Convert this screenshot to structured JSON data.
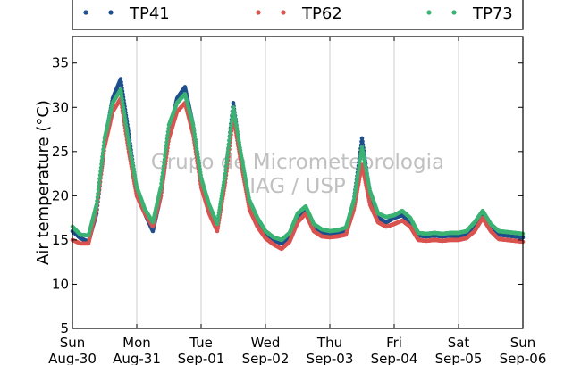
{
  "chart_data": {
    "type": "scatter",
    "ylabel": "Air temperature (°C)",
    "ylim": [
      5,
      38
    ],
    "yticks": [
      5,
      10,
      15,
      20,
      25,
      30,
      35
    ],
    "xlim": [
      "2015-08-30",
      "2015-09-06"
    ],
    "xticks": [
      {
        "day": "Sun",
        "date": "Aug-30"
      },
      {
        "day": "Mon",
        "date": "Aug-31"
      },
      {
        "day": "Tue",
        "date": "Sep-01"
      },
      {
        "day": "Wed",
        "date": "Sep-02"
      },
      {
        "day": "Thu",
        "date": "Sep-03"
      },
      {
        "day": "Fri",
        "date": "Sep-04"
      },
      {
        "day": "Sat",
        "date": "Sep-05"
      },
      {
        "day": "Sun",
        "date": "Sep-06"
      }
    ],
    "grid": "vertical",
    "legend_position": "above plot, top",
    "watermark": [
      "Grupo de Micrometeorologia",
      "IAG / USP"
    ],
    "series": [
      {
        "name": "TP41",
        "color": "#1f4e8c",
        "points": [
          [
            "2015-08-30 00:00",
            16.0
          ],
          [
            "2015-08-30 03:00",
            15.2
          ],
          [
            "2015-08-30 06:00",
            14.8
          ],
          [
            "2015-08-30 09:00",
            18.0
          ],
          [
            "2015-08-30 12:00",
            26.0
          ],
          [
            "2015-08-30 15:00",
            31.0
          ],
          [
            "2015-08-30 18:00",
            33.2
          ],
          [
            "2015-08-30 21:00",
            27.0
          ],
          [
            "2015-08-31 00:00",
            20.5
          ],
          [
            "2015-08-31 03:00",
            18.0
          ],
          [
            "2015-08-31 06:00",
            16.0
          ],
          [
            "2015-08-31 09:00",
            20.0
          ],
          [
            "2015-08-31 12:00",
            27.0
          ],
          [
            "2015-08-31 15:00",
            31.0
          ],
          [
            "2015-08-31 18:00",
            32.3
          ],
          [
            "2015-08-31 21:00",
            28.0
          ],
          [
            "2015-09-01 00:00",
            22.0
          ],
          [
            "2015-09-01 03:00",
            18.5
          ],
          [
            "2015-09-01 06:00",
            16.2
          ],
          [
            "2015-09-01 09:00",
            22.0
          ],
          [
            "2015-09-01 12:00",
            30.5
          ],
          [
            "2015-09-01 15:00",
            24.0
          ],
          [
            "2015-09-01 18:00",
            19.0
          ],
          [
            "2015-09-01 21:00",
            17.0
          ],
          [
            "2015-09-02 00:00",
            15.6
          ],
          [
            "2015-09-02 03:00",
            15.0
          ],
          [
            "2015-09-02 06:00",
            14.6
          ],
          [
            "2015-09-02 09:00",
            15.2
          ],
          [
            "2015-09-02 12:00",
            17.5
          ],
          [
            "2015-09-02 15:00",
            18.5
          ],
          [
            "2015-09-02 18:00",
            16.5
          ],
          [
            "2015-09-02 21:00",
            15.8
          ],
          [
            "2015-09-03 00:00",
            15.6
          ],
          [
            "2015-09-03 03:00",
            15.7
          ],
          [
            "2015-09-03 06:00",
            16.0
          ],
          [
            "2015-09-03 09:00",
            19.5
          ],
          [
            "2015-09-03 12:00",
            26.5
          ],
          [
            "2015-09-03 15:00",
            20.0
          ],
          [
            "2015-09-03 18:00",
            17.5
          ],
          [
            "2015-09-03 21:00",
            17.0
          ],
          [
            "2015-09-04 00:00",
            17.5
          ],
          [
            "2015-09-04 03:00",
            17.8
          ],
          [
            "2015-09-04 06:00",
            17.0
          ],
          [
            "2015-09-04 09:00",
            15.5
          ],
          [
            "2015-09-04 12:00",
            15.4
          ],
          [
            "2015-09-04 15:00",
            15.5
          ],
          [
            "2015-09-04 18:00",
            15.4
          ],
          [
            "2015-09-04 21:00",
            15.5
          ],
          [
            "2015-09-05 00:00",
            15.4
          ],
          [
            "2015-09-05 03:00",
            15.6
          ],
          [
            "2015-09-05 06:00",
            16.5
          ],
          [
            "2015-09-05 09:00",
            18.0
          ],
          [
            "2015-09-05 12:00",
            16.5
          ],
          [
            "2015-09-05 15:00",
            15.6
          ],
          [
            "2015-09-05 18:00",
            15.5
          ],
          [
            "2015-09-05 21:00",
            15.4
          ],
          [
            "2015-09-06 00:00",
            15.3
          ]
        ]
      },
      {
        "name": "TP62",
        "color": "#d9534f",
        "points": [
          [
            "2015-08-30 00:00",
            15.0
          ],
          [
            "2015-08-30 03:00",
            14.6
          ],
          [
            "2015-08-30 06:00",
            14.6
          ],
          [
            "2015-08-30 09:00",
            18.5
          ],
          [
            "2015-08-30 12:00",
            25.5
          ],
          [
            "2015-08-30 15:00",
            29.5
          ],
          [
            "2015-08-30 18:00",
            31.0
          ],
          [
            "2015-08-30 21:00",
            25.0
          ],
          [
            "2015-08-31 00:00",
            20.0
          ],
          [
            "2015-08-31 03:00",
            18.0
          ],
          [
            "2015-08-31 06:00",
            16.5
          ],
          [
            "2015-08-31 09:00",
            20.0
          ],
          [
            "2015-08-31 12:00",
            26.5
          ],
          [
            "2015-08-31 15:00",
            29.5
          ],
          [
            "2015-08-31 18:00",
            30.5
          ],
          [
            "2015-08-31 21:00",
            27.0
          ],
          [
            "2015-09-01 00:00",
            21.0
          ],
          [
            "2015-09-01 03:00",
            18.0
          ],
          [
            "2015-09-01 06:00",
            16.0
          ],
          [
            "2015-09-01 09:00",
            21.5
          ],
          [
            "2015-09-01 12:00",
            29.0
          ],
          [
            "2015-09-01 15:00",
            23.5
          ],
          [
            "2015-09-01 18:00",
            18.5
          ],
          [
            "2015-09-01 21:00",
            16.5
          ],
          [
            "2015-09-02 00:00",
            15.2
          ],
          [
            "2015-09-02 03:00",
            14.5
          ],
          [
            "2015-09-02 06:00",
            14.0
          ],
          [
            "2015-09-02 09:00",
            14.8
          ],
          [
            "2015-09-02 12:00",
            17.0
          ],
          [
            "2015-09-02 15:00",
            18.0
          ],
          [
            "2015-09-02 18:00",
            16.0
          ],
          [
            "2015-09-02 21:00",
            15.4
          ],
          [
            "2015-09-03 00:00",
            15.3
          ],
          [
            "2015-09-03 03:00",
            15.4
          ],
          [
            "2015-09-03 06:00",
            15.6
          ],
          [
            "2015-09-03 09:00",
            18.5
          ],
          [
            "2015-09-03 12:00",
            23.5
          ],
          [
            "2015-09-03 15:00",
            19.0
          ],
          [
            "2015-09-03 18:00",
            17.0
          ],
          [
            "2015-09-03 21:00",
            16.5
          ],
          [
            "2015-09-04 00:00",
            16.8
          ],
          [
            "2015-09-04 03:00",
            17.2
          ],
          [
            "2015-09-04 06:00",
            16.5
          ],
          [
            "2015-09-04 09:00",
            15.0
          ],
          [
            "2015-09-04 12:00",
            14.9
          ],
          [
            "2015-09-04 15:00",
            15.0
          ],
          [
            "2015-09-04 18:00",
            14.9
          ],
          [
            "2015-09-04 21:00",
            15.0
          ],
          [
            "2015-09-05 00:00",
            15.0
          ],
          [
            "2015-09-05 03:00",
            15.2
          ],
          [
            "2015-09-05 06:00",
            16.0
          ],
          [
            "2015-09-05 09:00",
            17.5
          ],
          [
            "2015-09-05 12:00",
            16.0
          ],
          [
            "2015-09-05 15:00",
            15.1
          ],
          [
            "2015-09-05 18:00",
            15.0
          ],
          [
            "2015-09-05 21:00",
            14.9
          ],
          [
            "2015-09-06 00:00",
            14.8
          ]
        ]
      },
      {
        "name": "TP73",
        "color": "#3bb273",
        "points": [
          [
            "2015-08-30 00:00",
            16.5
          ],
          [
            "2015-08-30 03:00",
            15.6
          ],
          [
            "2015-08-30 06:00",
            15.5
          ],
          [
            "2015-08-30 09:00",
            19.0
          ],
          [
            "2015-08-30 12:00",
            26.5
          ],
          [
            "2015-08-30 15:00",
            30.5
          ],
          [
            "2015-08-30 18:00",
            32.0
          ],
          [
            "2015-08-30 21:00",
            26.0
          ],
          [
            "2015-08-31 00:00",
            21.0
          ],
          [
            "2015-08-31 03:00",
            18.5
          ],
          [
            "2015-08-31 06:00",
            17.0
          ],
          [
            "2015-08-31 09:00",
            21.0
          ],
          [
            "2015-08-31 12:00",
            28.0
          ],
          [
            "2015-08-31 15:00",
            30.5
          ],
          [
            "2015-08-31 18:00",
            31.5
          ],
          [
            "2015-08-31 21:00",
            28.0
          ],
          [
            "2015-09-01 00:00",
            22.0
          ],
          [
            "2015-09-01 03:00",
            19.0
          ],
          [
            "2015-09-01 06:00",
            16.8
          ],
          [
            "2015-09-01 09:00",
            22.5
          ],
          [
            "2015-09-01 12:00",
            30.0
          ],
          [
            "2015-09-01 15:00",
            24.5
          ],
          [
            "2015-09-01 18:00",
            19.5
          ],
          [
            "2015-09-01 21:00",
            17.5
          ],
          [
            "2015-09-02 00:00",
            16.0
          ],
          [
            "2015-09-02 03:00",
            15.3
          ],
          [
            "2015-09-02 06:00",
            15.0
          ],
          [
            "2015-09-02 09:00",
            15.8
          ],
          [
            "2015-09-02 12:00",
            18.0
          ],
          [
            "2015-09-02 15:00",
            18.8
          ],
          [
            "2015-09-02 18:00",
            16.8
          ],
          [
            "2015-09-02 21:00",
            16.2
          ],
          [
            "2015-09-03 00:00",
            16.0
          ],
          [
            "2015-09-03 03:00",
            16.1
          ],
          [
            "2015-09-03 06:00",
            16.4
          ],
          [
            "2015-09-03 09:00",
            19.5
          ],
          [
            "2015-09-03 12:00",
            25.5
          ],
          [
            "2015-09-03 15:00",
            20.5
          ],
          [
            "2015-09-03 18:00",
            18.0
          ],
          [
            "2015-09-03 21:00",
            17.6
          ],
          [
            "2015-09-04 00:00",
            17.8
          ],
          [
            "2015-09-04 03:00",
            18.3
          ],
          [
            "2015-09-04 06:00",
            17.5
          ],
          [
            "2015-09-04 09:00",
            15.8
          ],
          [
            "2015-09-04 12:00",
            15.7
          ],
          [
            "2015-09-04 15:00",
            15.8
          ],
          [
            "2015-09-04 18:00",
            15.7
          ],
          [
            "2015-09-04 21:00",
            15.8
          ],
          [
            "2015-09-05 00:00",
            15.8
          ],
          [
            "2015-09-05 03:00",
            16.0
          ],
          [
            "2015-09-05 06:00",
            17.0
          ],
          [
            "2015-09-05 09:00",
            18.3
          ],
          [
            "2015-09-05 12:00",
            16.8
          ],
          [
            "2015-09-05 15:00",
            16.0
          ],
          [
            "2015-09-05 18:00",
            15.9
          ],
          [
            "2015-09-05 21:00",
            15.8
          ],
          [
            "2015-09-06 00:00",
            15.7
          ]
        ]
      }
    ]
  }
}
